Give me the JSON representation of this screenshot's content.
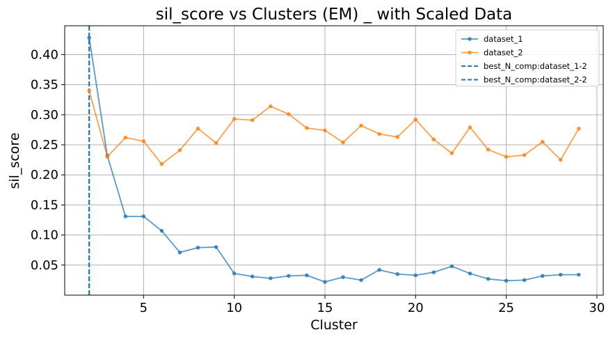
{
  "chart_data": {
    "type": "line",
    "title": "sil_score vs Clusters (EM) _ with Scaled Data",
    "xlabel": "Cluster",
    "ylabel": "sil_score",
    "xlim": [
      0.65,
      30.35
    ],
    "ylim": [
      0.0,
      0.448
    ],
    "xticks": [
      5,
      10,
      15,
      20,
      25,
      30
    ],
    "yticks": [
      0.05,
      0.1,
      0.15,
      0.2,
      0.25,
      0.3,
      0.35,
      0.4
    ],
    "ytick_labels": [
      "0.05",
      "0.10",
      "0.15",
      "0.20",
      "0.25",
      "0.30",
      "0.35",
      "0.40"
    ],
    "grid": true,
    "legend_position": "top-right",
    "x": [
      2,
      3,
      4,
      5,
      6,
      7,
      8,
      9,
      10,
      11,
      12,
      13,
      14,
      15,
      16,
      17,
      18,
      19,
      20,
      21,
      22,
      23,
      24,
      25,
      26,
      27,
      28,
      29
    ],
    "series": [
      {
        "name": "dataset_1",
        "color": "#1f77b4",
        "values": [
          0.428,
          0.232,
          0.131,
          0.131,
          0.107,
          0.071,
          0.079,
          0.08,
          0.036,
          0.031,
          0.028,
          0.032,
          0.033,
          0.022,
          0.03,
          0.025,
          0.042,
          0.035,
          0.033,
          0.038,
          0.048,
          0.036,
          0.027,
          0.024,
          0.025,
          0.032,
          0.034,
          0.034
        ]
      },
      {
        "name": "dataset_2",
        "color": "#ff7f0e",
        "values": [
          0.34,
          0.23,
          0.262,
          0.256,
          0.218,
          0.241,
          0.277,
          0.253,
          0.293,
          0.291,
          0.314,
          0.301,
          0.278,
          0.274,
          0.254,
          0.282,
          0.268,
          0.263,
          0.292,
          0.259,
          0.236,
          0.279,
          0.242,
          0.23,
          0.233,
          0.255,
          0.225,
          0.277
        ]
      }
    ],
    "vlines": [
      {
        "name": "best_N_comp:dataset_1-2",
        "x": 2,
        "color": "#1f77b4"
      },
      {
        "name": "best_N_comp:dataset_2-2",
        "x": 2,
        "color": "#1f77b4"
      }
    ]
  }
}
